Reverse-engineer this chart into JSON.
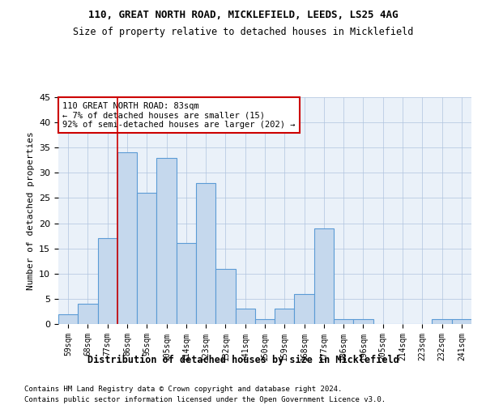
{
  "title1": "110, GREAT NORTH ROAD, MICKLEFIELD, LEEDS, LS25 4AG",
  "title2": "Size of property relative to detached houses in Micklefield",
  "xlabel": "Distribution of detached houses by size in Micklefield",
  "ylabel": "Number of detached properties",
  "bins": [
    "59sqm",
    "68sqm",
    "77sqm",
    "86sqm",
    "95sqm",
    "105sqm",
    "114sqm",
    "123sqm",
    "132sqm",
    "141sqm",
    "150sqm",
    "159sqm",
    "168sqm",
    "177sqm",
    "186sqm",
    "196sqm",
    "205sqm",
    "214sqm",
    "223sqm",
    "232sqm",
    "241sqm"
  ],
  "values": [
    2,
    4,
    17,
    34,
    26,
    33,
    16,
    28,
    11,
    3,
    1,
    3,
    6,
    19,
    1,
    1,
    0,
    0,
    0,
    1,
    1
  ],
  "bar_color": "#c5d8ed",
  "bar_edge_color": "#5b9bd5",
  "vline_x_index": 3,
  "vline_color": "#cc0000",
  "annotation_line1": "110 GREAT NORTH ROAD: 83sqm",
  "annotation_line2": "← 7% of detached houses are smaller (15)",
  "annotation_line3": "92% of semi-detached houses are larger (202) →",
  "annotation_box_color": "#cc0000",
  "annotation_bg": "#ffffff",
  "ylim": [
    0,
    45
  ],
  "yticks": [
    0,
    5,
    10,
    15,
    20,
    25,
    30,
    35,
    40,
    45
  ],
  "footer1": "Contains HM Land Registry data © Crown copyright and database right 2024.",
  "footer2": "Contains public sector information licensed under the Open Government Licence v3.0.",
  "bg_color": "#ffffff",
  "plot_bg_color": "#eaf1f9"
}
